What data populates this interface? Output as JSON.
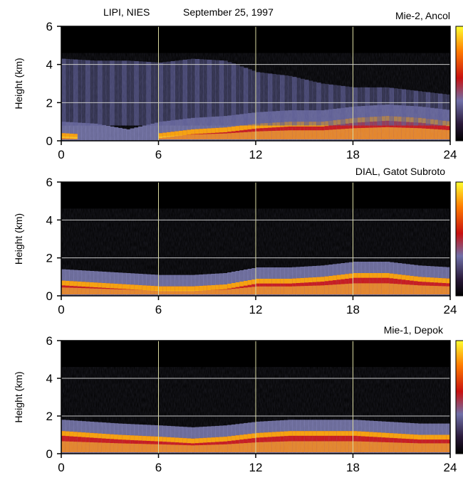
{
  "header": {
    "institution": "LIPI, NIES",
    "date": "September 25, 1997"
  },
  "chart_data": [
    {
      "type": "heatmap",
      "title": "Mie-2,  Ancol",
      "xlabel": "",
      "ylabel": "Height (km)",
      "xlim": [
        0,
        24
      ],
      "ylim": [
        0,
        6
      ],
      "xticks": [
        0,
        6,
        12,
        18,
        24
      ],
      "yticks": [
        0,
        2,
        4,
        6
      ],
      "grid": true,
      "colorbar": "right",
      "features": [
        {
          "name": "mixed-layer-top",
          "x": [
            0,
            2,
            4,
            6,
            8,
            10,
            12,
            14,
            16,
            18,
            20,
            22,
            24
          ],
          "y": [
            1.0,
            0.9,
            0.6,
            1.0,
            1.2,
            1.3,
            1.5,
            1.6,
            1.6,
            1.8,
            1.9,
            1.8,
            1.6
          ]
        },
        {
          "name": "cloud-layer-top",
          "x": [
            0,
            2,
            4,
            6,
            8,
            10,
            12,
            14,
            16,
            18,
            20,
            22,
            24
          ],
          "y": [
            4.3,
            4.2,
            4.2,
            4.1,
            4.3,
            4.2,
            3.6,
            3.4,
            3.0,
            2.8,
            2.8,
            2.6,
            2.4
          ]
        }
      ]
    },
    {
      "type": "heatmap",
      "title": "DIAL,  Gatot Subroto",
      "xlabel": "",
      "ylabel": "Height (km)",
      "xlim": [
        0,
        24
      ],
      "ylim": [
        0,
        6
      ],
      "xticks": [
        0,
        6,
        12,
        18,
        24
      ],
      "yticks": [
        0,
        2,
        4,
        6
      ],
      "grid": true,
      "colorbar": "right",
      "features": [
        {
          "name": "mixed-layer-top",
          "x": [
            0,
            2,
            4,
            6,
            8,
            10,
            12,
            14,
            16,
            18,
            20,
            22,
            24
          ],
          "y": [
            1.4,
            1.3,
            1.2,
            1.1,
            1.1,
            1.2,
            1.5,
            1.5,
            1.6,
            1.8,
            1.8,
            1.6,
            1.5
          ]
        }
      ]
    },
    {
      "type": "heatmap",
      "title": "Mie-1,  Depok",
      "xlabel": "",
      "ylabel": "Height (km)",
      "xlim": [
        0,
        24
      ],
      "ylim": [
        0,
        6
      ],
      "xticks": [
        0,
        6,
        12,
        18,
        24
      ],
      "yticks": [
        0,
        2,
        4,
        6
      ],
      "grid": true,
      "colorbar": "right",
      "features": [
        {
          "name": "mixed-layer-top",
          "x": [
            0,
            3.5,
            6,
            8,
            10,
            12,
            14,
            16,
            18,
            20,
            22,
            24
          ],
          "y": [
            1.8,
            1.6,
            1.5,
            1.4,
            1.5,
            1.7,
            1.8,
            1.8,
            1.8,
            1.7,
            1.6,
            1.6
          ]
        }
      ]
    }
  ]
}
